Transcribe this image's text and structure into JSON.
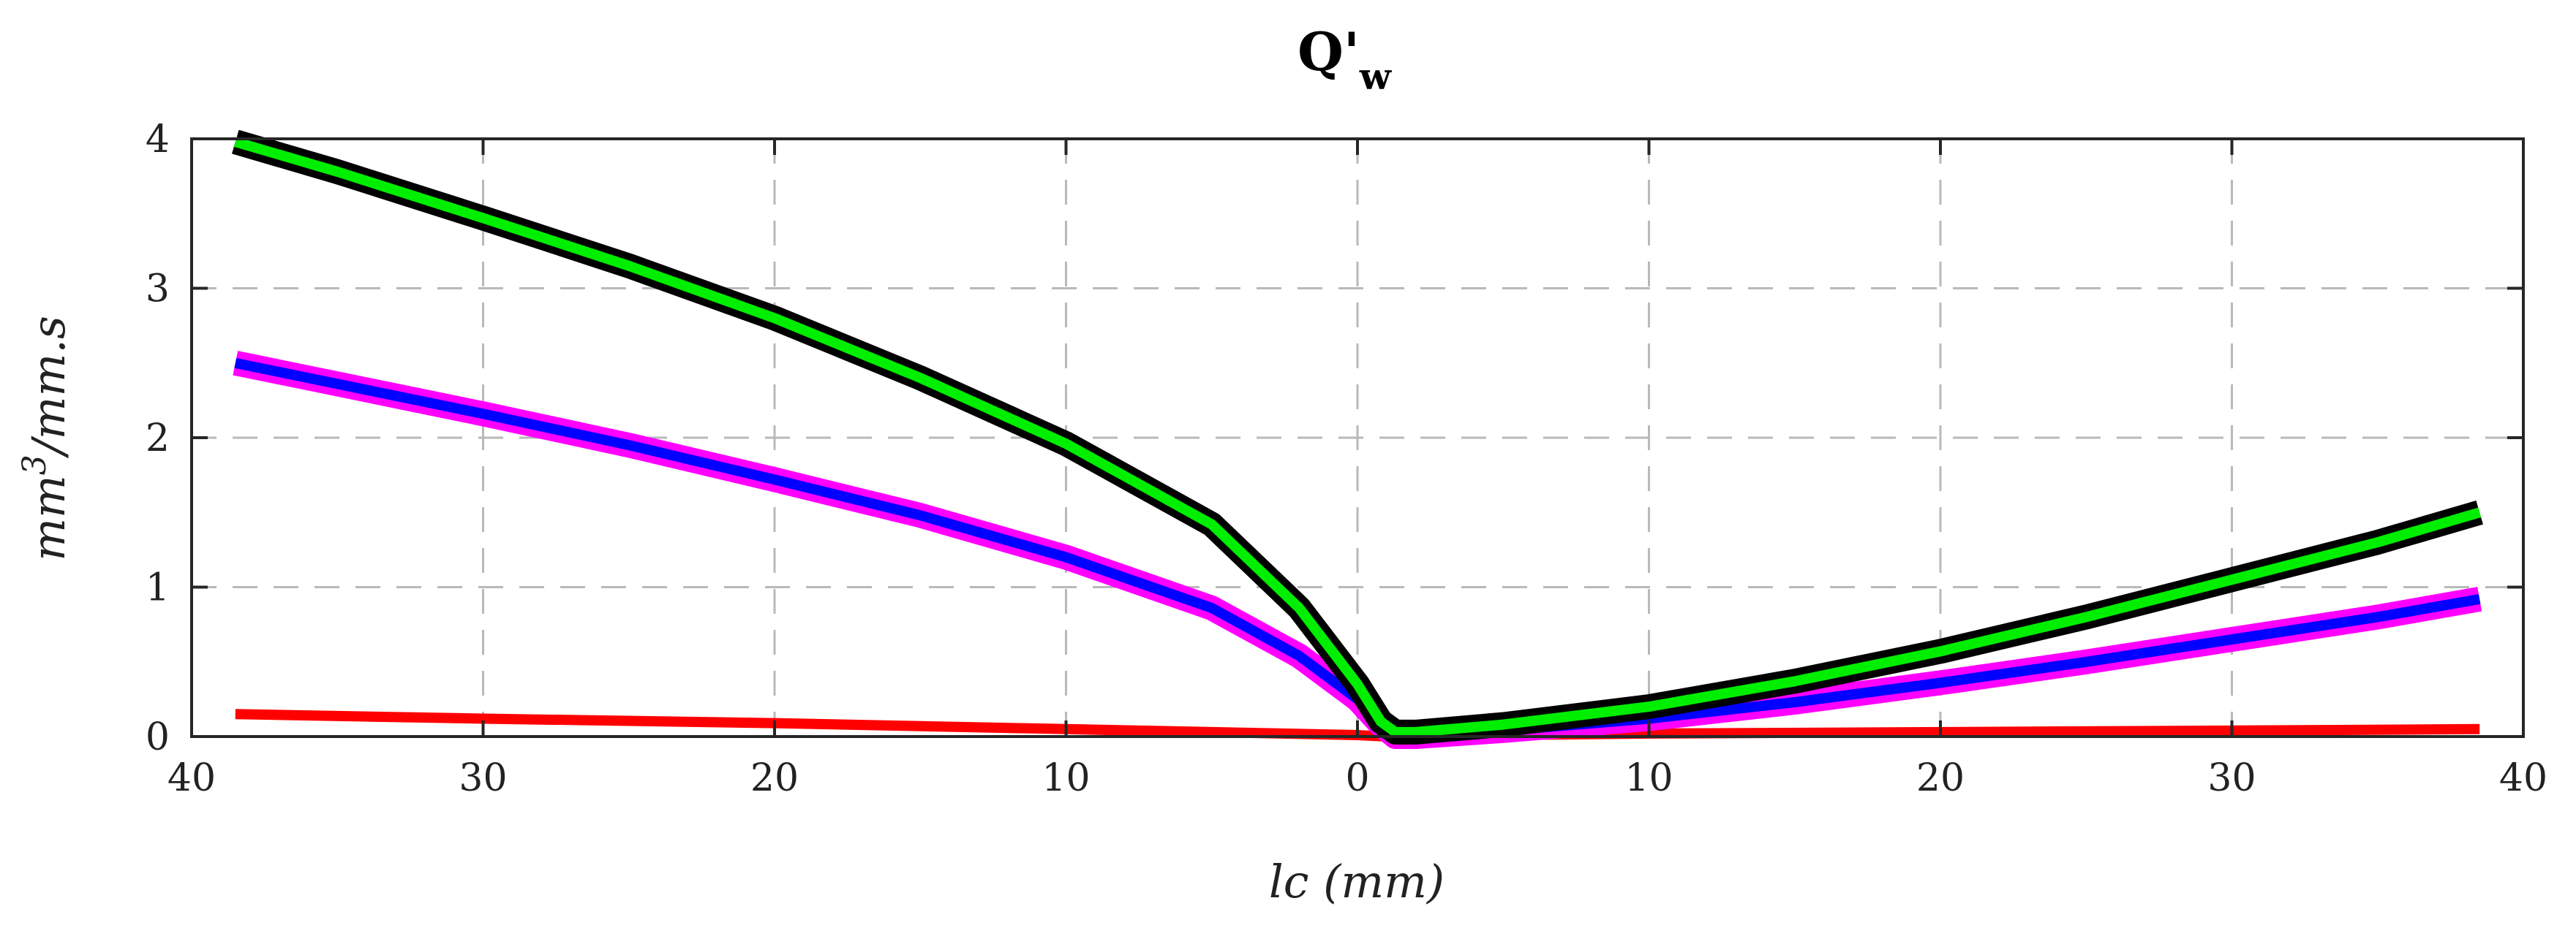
{
  "chart_data": {
    "type": "line",
    "title": "Q'",
    "title_subscript": "w",
    "xlabel": "lc (mm)",
    "ylabel": "mm3/mm.s",
    "ylabel_base": "mm",
    "ylabel_sup": "3",
    "ylabel_rest": "/mm.s",
    "xlim": [
      -40,
      40
    ],
    "ylim": [
      0,
      4
    ],
    "xticks": [
      -40,
      -30,
      -20,
      -10,
      0,
      10,
      20,
      30,
      40
    ],
    "xtick_labels": [
      "40",
      "30",
      "20",
      "10",
      "0",
      "10",
      "20",
      "30",
      "40"
    ],
    "yticks": [
      0,
      1,
      2,
      3,
      4
    ],
    "ytick_labels": [
      "0",
      "1",
      "2",
      "3",
      "4"
    ],
    "grid": true,
    "series": [
      {
        "name": "red",
        "color": "#ff0000",
        "outline": null,
        "x": [
          -38.5,
          -30,
          -20,
          -10,
          -5,
          0,
          1,
          5,
          10,
          20,
          30,
          38.5
        ],
        "y": [
          0.15,
          0.12,
          0.09,
          0.05,
          0.03,
          0.01,
          0.0,
          0.01,
          0.02,
          0.03,
          0.04,
          0.05
        ]
      },
      {
        "name": "blue",
        "color": "#0000ff",
        "outline": "#ff00ff",
        "x": [
          -38.5,
          -35,
          -30,
          -25,
          -20,
          -15,
          -10,
          -5,
          -2,
          0,
          0.8,
          1.3,
          2,
          5,
          10,
          15,
          20,
          25,
          30,
          35,
          38.5
        ],
        "y": [
          2.5,
          2.36,
          2.16,
          1.95,
          1.72,
          1.48,
          1.2,
          0.86,
          0.54,
          0.25,
          0.08,
          0.0,
          0.0,
          0.04,
          0.12,
          0.23,
          0.36,
          0.5,
          0.65,
          0.8,
          0.92
        ]
      },
      {
        "name": "green",
        "color": "#00ee00",
        "outline": "#000000",
        "x": [
          -38.5,
          -35,
          -30,
          -25,
          -20,
          -15,
          -10,
          -5,
          -2,
          0,
          0.8,
          1.3,
          2,
          5,
          10,
          15,
          20,
          25,
          30,
          35,
          38.5
        ],
        "y": [
          3.98,
          3.78,
          3.47,
          3.15,
          2.8,
          2.4,
          1.96,
          1.42,
          0.86,
          0.35,
          0.1,
          0.03,
          0.03,
          0.08,
          0.2,
          0.37,
          0.57,
          0.8,
          1.05,
          1.3,
          1.5
        ]
      }
    ]
  }
}
